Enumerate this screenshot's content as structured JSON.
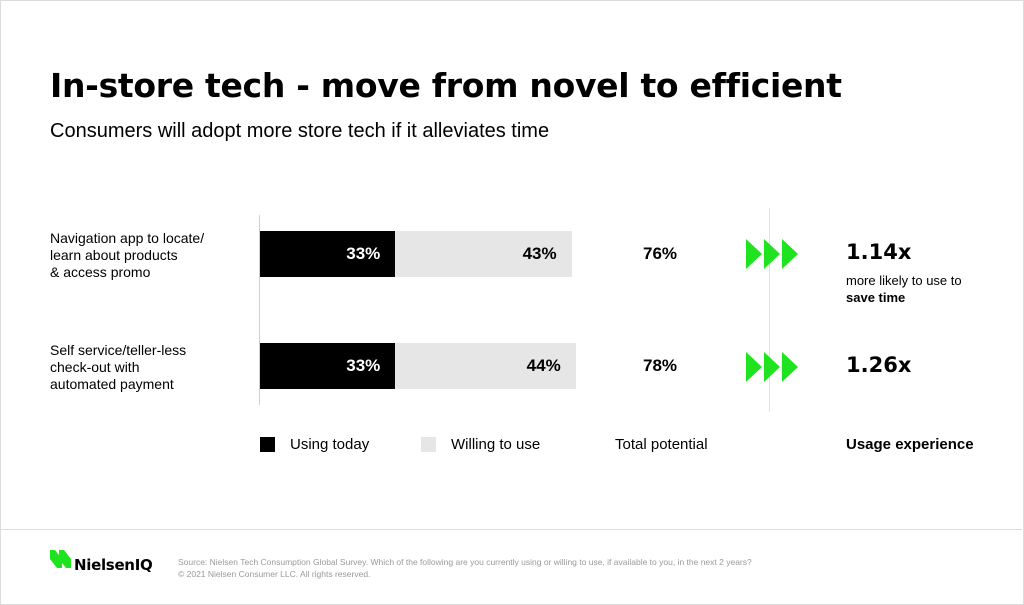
{
  "title": "In-store tech - move from novel to efficient",
  "subtitle": "Consumers will adopt more store tech if it alleviates time",
  "colors": {
    "using_today": "#000000",
    "willing_to_use": "#e6e6e6",
    "arrow": "#1ee31e"
  },
  "chart_data": {
    "type": "bar",
    "orientation": "horizontal",
    "stacked": true,
    "categories": [
      "Navigation app to locate/ learn about products & access promo",
      "Self service/teller-less check-out with automated payment"
    ],
    "category_lines": [
      [
        "Navigation app to locate/",
        "learn about products",
        "& access promo"
      ],
      [
        "Self service/teller-less",
        "check-out with",
        "automated payment"
      ]
    ],
    "series": [
      {
        "name": "Using today",
        "values": [
          33,
          33
        ],
        "labels": [
          "33%",
          "33%"
        ]
      },
      {
        "name": "Willing to use",
        "values": [
          43,
          44
        ],
        "labels": [
          "43%",
          "44%"
        ]
      }
    ],
    "total_potential": [
      "76%",
      "78%"
    ],
    "usage_experience": [
      "1.14x",
      "1.26x"
    ],
    "xlim": [
      0,
      100
    ],
    "legend_position": "bottom"
  },
  "note": {
    "prefix": "more likely to use to",
    "bold": "save time"
  },
  "legend": {
    "using_today": "Using today",
    "willing_to_use": "Willing to use",
    "total_potential": "Total potential",
    "usage_experience": "Usage experience"
  },
  "footer": {
    "logo": "NielsenIQ",
    "source": "Source: Nielsen Tech Consumption Global Survey. Which of the following are you currently using or willing to use, if available to you, in the next 2 years?",
    "copyright": "© 2021 Nielsen Consumer LLC. All rights reserved."
  }
}
